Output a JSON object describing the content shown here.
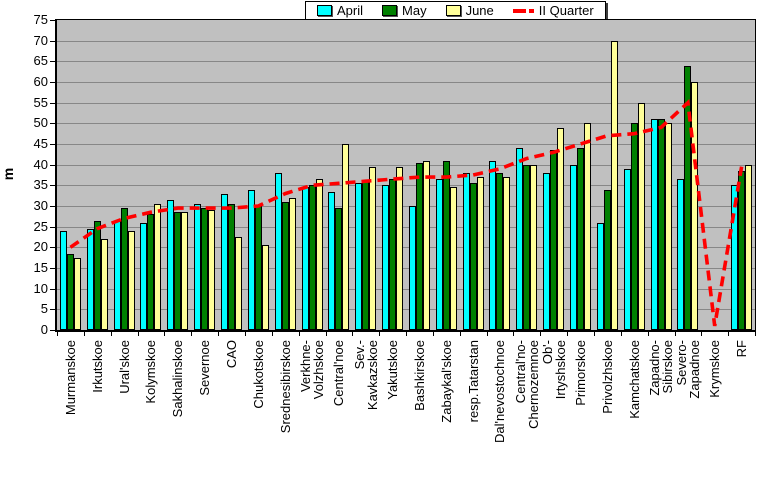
{
  "chart_data": {
    "type": "bar",
    "title": "",
    "xlabel": "",
    "ylabel": "m",
    "ylim": [
      0,
      75
    ],
    "ytick_step": 5,
    "grid": "horizontal",
    "legend_position": "top-center",
    "plot_background": "#c0c0c0",
    "gridline_color": "#878787",
    "categories": [
      "Murmanskoe",
      "Irkutskoe",
      "Ural'skoe",
      "Kolymskoe",
      "Sakhalinskoe",
      "Severnoe",
      "CAO",
      "Chukotskoe",
      "Srednesibirskoe",
      "Verkhne-\nVolzhskoe",
      "Central'noe",
      "Sev.-\nKavkazskoe",
      "Yakutskoe",
      "Bashkirskoe",
      "Zabaykal'skoe",
      "resp.Tatarstan",
      "Dal'nevostochnoe",
      "Central'no-\nChernozemnoe",
      "Ob'-\nIrtyshskoe",
      "Primorskoe",
      "Privolzhskoe",
      "Kamchatskoe",
      "Zapadno-\nSibirskoe",
      "Severo-\nZapadnoe",
      "Krymskoe",
      "RF"
    ],
    "series": [
      {
        "name": "April",
        "type": "bar",
        "color": "#00ffff",
        "values": [
          24,
          24.5,
          26.5,
          26,
          31.5,
          30.5,
          33,
          34,
          38,
          34.5,
          33.5,
          35.5,
          35,
          30,
          36.5,
          38,
          41,
          44,
          38,
          40,
          26,
          39,
          51,
          36.5,
          null,
          35
        ]
      },
      {
        "name": "May",
        "type": "bar",
        "color": "#008000",
        "values": [
          18.5,
          26.5,
          29.5,
          28,
          28.5,
          29.5,
          30.5,
          30,
          31,
          35,
          29.5,
          36,
          36.5,
          40.5,
          41,
          35.5,
          38,
          40,
          43.5,
          44,
          34,
          50,
          51,
          64,
          null,
          38.5
        ]
      },
      {
        "name": "June",
        "type": "bar",
        "color": "#ffff99",
        "values": [
          17.5,
          22,
          24,
          30.5,
          28.5,
          29,
          22.5,
          20.5,
          32,
          36.5,
          45,
          39.5,
          39.5,
          41,
          34.5,
          37,
          37,
          40,
          49,
          50,
          70,
          55,
          50,
          60,
          null,
          40
        ]
      },
      {
        "name": "II Quarter",
        "type": "line",
        "color": "#ff0000",
        "dashed": true,
        "values": [
          20,
          24.5,
          27,
          28.5,
          29.5,
          29.5,
          29.5,
          30,
          33,
          35,
          35.5,
          36,
          36.5,
          37,
          37,
          37.5,
          39,
          41.5,
          43,
          45,
          47,
          47.5,
          49,
          55,
          1,
          39.5
        ]
      }
    ]
  }
}
